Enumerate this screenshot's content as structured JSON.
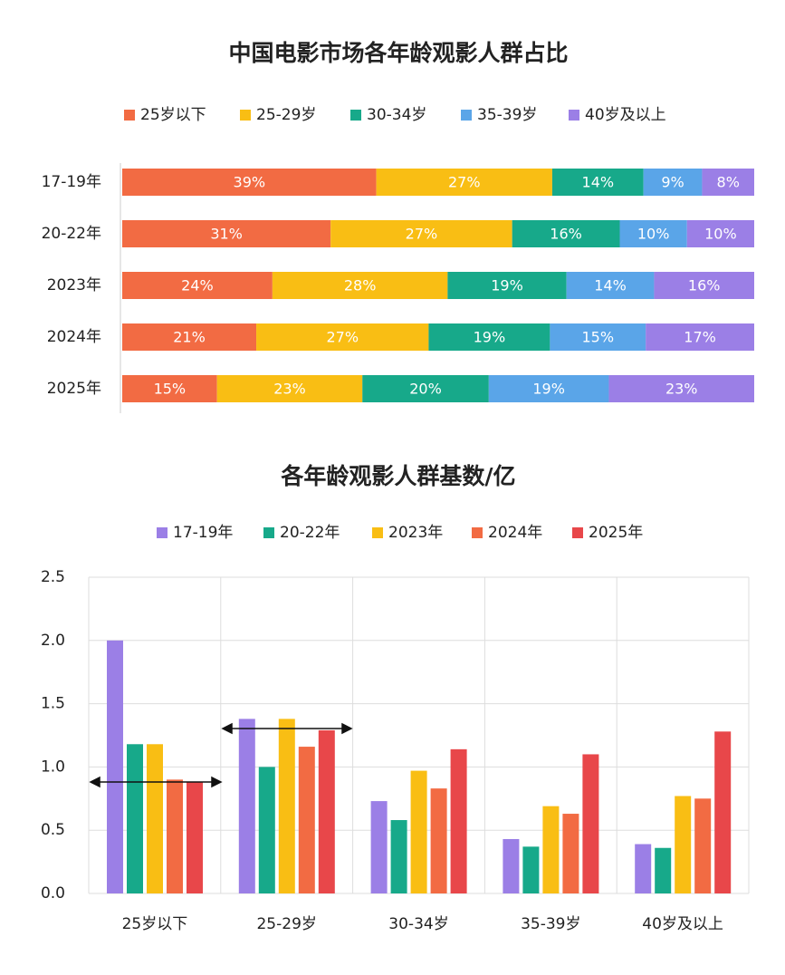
{
  "chart_data": [
    {
      "type": "bar",
      "orientation": "horizontal",
      "stacked": true,
      "title": "中国电影市场各年龄观影人群占比",
      "categories": [
        "17-19年",
        "20-22年",
        "2023年",
        "2024年",
        "2025年"
      ],
      "series": [
        {
          "name": "25岁以下",
          "color": "#f26b43",
          "values": [
            39,
            31,
            24,
            21,
            15
          ],
          "value_labels": [
            "39%",
            "31%",
            "24%",
            "21%",
            "15%"
          ]
        },
        {
          "name": "25-29岁",
          "color": "#f9be14",
          "values": [
            27,
            27,
            28,
            27,
            23
          ],
          "value_labels": [
            "27%",
            "27%",
            "28%",
            "27%",
            "23%"
          ]
        },
        {
          "name": "30-34岁",
          "color": "#17a98a",
          "values": [
            14,
            16,
            19,
            19,
            20
          ],
          "value_labels": [
            "14%",
            "16%",
            "19%",
            "19%",
            "20%"
          ]
        },
        {
          "name": "35-39岁",
          "color": "#5aa5e8",
          "values": [
            9,
            10,
            14,
            15,
            19
          ],
          "value_labels": [
            "9%",
            "10%",
            "14%",
            "15%",
            "19%"
          ]
        },
        {
          "name": "40岁及以上",
          "color": "#9b7fe6",
          "values": [
            8,
            10,
            16,
            17,
            23
          ],
          "value_labels": [
            "8%",
            "10%",
            "16%",
            "17%",
            "23%"
          ]
        }
      ]
    },
    {
      "type": "bar",
      "title": "各年龄观影人群基数/亿",
      "categories": [
        "25岁以下",
        "25-29岁",
        "30-34岁",
        "35-39岁",
        "40岁及以上"
      ],
      "series": [
        {
          "name": "17-19年",
          "color": "#9b7fe6",
          "values": [
            2.0,
            1.38,
            0.73,
            0.43,
            0.39
          ]
        },
        {
          "name": "20-22年",
          "color": "#17a98a",
          "values": [
            1.18,
            1.0,
            0.58,
            0.37,
            0.36
          ]
        },
        {
          "name": "2023年",
          "color": "#f9be14",
          "values": [
            1.18,
            1.38,
            0.97,
            0.69,
            0.77
          ]
        },
        {
          "name": "2024年",
          "color": "#f26b43",
          "values": [
            0.9,
            1.16,
            0.83,
            0.63,
            0.75
          ]
        },
        {
          "name": "2025年",
          "color": "#e8474a",
          "values": [
            0.88,
            1.29,
            1.14,
            1.1,
            1.28
          ]
        }
      ],
      "ylim": [
        0,
        2.5
      ],
      "yticks": [
        {
          "value": 0,
          "label": "0.0"
        },
        0.5,
        {
          "value": 1,
          "label": "1.0"
        },
        1.5,
        {
          "value": 2,
          "label": "2.0"
        },
        2.5
      ],
      "grid": true
    }
  ]
}
